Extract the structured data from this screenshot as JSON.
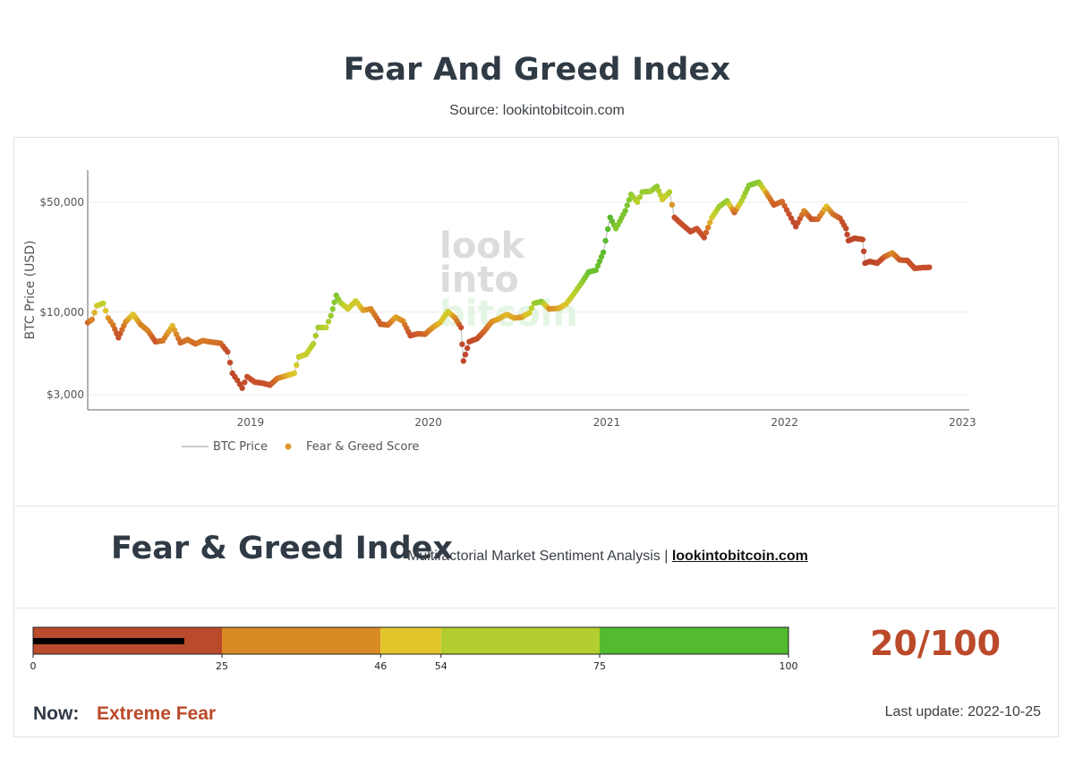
{
  "header": {
    "title": "Fear And Greed Index",
    "source": "Source: lookintobitcoin.com"
  },
  "chart_data": {
    "type": "scatter",
    "ylabel": "BTC Price (USD)",
    "yscale": "log",
    "ylim": [
      2400,
      80000
    ],
    "y_ticks": [
      {
        "value": 3000,
        "label": "$3,000"
      },
      {
        "value": 10000,
        "label": "$10,000"
      },
      {
        "value": 50000,
        "label": "$50,000"
      }
    ],
    "x_ticks": [
      "2019",
      "2020",
      "2021",
      "2022",
      "2023"
    ],
    "x_range": [
      "2018-02-01",
      "2023-01-15"
    ],
    "grid": true,
    "legend_position": "bottom-left",
    "watermark": "lookintobitcoin",
    "series": [
      {
        "name": "BTC Price",
        "kind": "line",
        "color": "#bbbbbb"
      },
      {
        "name": "Fear & Greed Score",
        "kind": "markers",
        "color": "#e0962a"
      }
    ],
    "points": [
      {
        "x": "2018-02-01",
        "y": 8600,
        "s": 30
      },
      {
        "x": "2018-02-10",
        "y": 9000,
        "s": 38
      },
      {
        "x": "2018-02-20",
        "y": 11000,
        "s": 55
      },
      {
        "x": "2018-03-05",
        "y": 11400,
        "s": 60
      },
      {
        "x": "2018-03-15",
        "y": 9200,
        "s": 42
      },
      {
        "x": "2018-03-25",
        "y": 8300,
        "s": 35
      },
      {
        "x": "2018-04-05",
        "y": 6900,
        "s": 22
      },
      {
        "x": "2018-04-20",
        "y": 8700,
        "s": 40
      },
      {
        "x": "2018-05-05",
        "y": 9700,
        "s": 52
      },
      {
        "x": "2018-05-20",
        "y": 8400,
        "s": 40
      },
      {
        "x": "2018-06-05",
        "y": 7600,
        "s": 38
      },
      {
        "x": "2018-06-20",
        "y": 6500,
        "s": 25
      },
      {
        "x": "2018-07-05",
        "y": 6600,
        "s": 35
      },
      {
        "x": "2018-07-25",
        "y": 8200,
        "s": 48
      },
      {
        "x": "2018-08-10",
        "y": 6400,
        "s": 30
      },
      {
        "x": "2018-08-25",
        "y": 6700,
        "s": 35
      },
      {
        "x": "2018-09-10",
        "y": 6300,
        "s": 32
      },
      {
        "x": "2018-09-25",
        "y": 6600,
        "s": 36
      },
      {
        "x": "2018-10-15",
        "y": 6450,
        "s": 34
      },
      {
        "x": "2018-11-01",
        "y": 6350,
        "s": 32
      },
      {
        "x": "2018-11-15",
        "y": 5600,
        "s": 18
      },
      {
        "x": "2018-11-25",
        "y": 4100,
        "s": 12
      },
      {
        "x": "2018-12-05",
        "y": 3700,
        "s": 14
      },
      {
        "x": "2018-12-15",
        "y": 3300,
        "s": 10
      },
      {
        "x": "2018-12-25",
        "y": 3900,
        "s": 22
      },
      {
        "x": "2019-01-10",
        "y": 3600,
        "s": 26
      },
      {
        "x": "2019-01-25",
        "y": 3550,
        "s": 20
      },
      {
        "x": "2019-02-10",
        "y": 3450,
        "s": 24
      },
      {
        "x": "2019-02-25",
        "y": 3800,
        "s": 35
      },
      {
        "x": "2019-03-15",
        "y": 3950,
        "s": 45
      },
      {
        "x": "2019-04-01",
        "y": 4100,
        "s": 52
      },
      {
        "x": "2019-04-10",
        "y": 5200,
        "s": 60
      },
      {
        "x": "2019-04-25",
        "y": 5400,
        "s": 58
      },
      {
        "x": "2019-05-10",
        "y": 6300,
        "s": 65
      },
      {
        "x": "2019-05-20",
        "y": 8000,
        "s": 70
      },
      {
        "x": "2019-06-05",
        "y": 8000,
        "s": 62
      },
      {
        "x": "2019-06-15",
        "y": 9500,
        "s": 72
      },
      {
        "x": "2019-06-26",
        "y": 12800,
        "s": 80
      },
      {
        "x": "2019-07-05",
        "y": 11500,
        "s": 68
      },
      {
        "x": "2019-07-20",
        "y": 10500,
        "s": 55
      },
      {
        "x": "2019-08-05",
        "y": 11800,
        "s": 58
      },
      {
        "x": "2019-08-20",
        "y": 10300,
        "s": 45
      },
      {
        "x": "2019-09-05",
        "y": 10500,
        "s": 40
      },
      {
        "x": "2019-09-25",
        "y": 8400,
        "s": 28
      },
      {
        "x": "2019-10-10",
        "y": 8300,
        "s": 32
      },
      {
        "x": "2019-10-26",
        "y": 9300,
        "s": 45
      },
      {
        "x": "2019-11-10",
        "y": 8800,
        "s": 40
      },
      {
        "x": "2019-11-25",
        "y": 7100,
        "s": 22
      },
      {
        "x": "2019-12-10",
        "y": 7300,
        "s": 28
      },
      {
        "x": "2019-12-25",
        "y": 7250,
        "s": 30
      },
      {
        "x": "2020-01-10",
        "y": 8000,
        "s": 42
      },
      {
        "x": "2020-01-25",
        "y": 8600,
        "s": 48
      },
      {
        "x": "2020-02-10",
        "y": 10100,
        "s": 58
      },
      {
        "x": "2020-02-25",
        "y": 9200,
        "s": 40
      },
      {
        "x": "2020-03-08",
        "y": 8000,
        "s": 25
      },
      {
        "x": "2020-03-13",
        "y": 4900,
        "s": 10
      },
      {
        "x": "2020-03-25",
        "y": 6500,
        "s": 15
      },
      {
        "x": "2020-04-10",
        "y": 6800,
        "s": 22
      },
      {
        "x": "2020-04-25",
        "y": 7600,
        "s": 30
      },
      {
        "x": "2020-05-10",
        "y": 8700,
        "s": 40
      },
      {
        "x": "2020-05-25",
        "y": 9100,
        "s": 45
      },
      {
        "x": "2020-06-10",
        "y": 9700,
        "s": 48
      },
      {
        "x": "2020-06-25",
        "y": 9200,
        "s": 45
      },
      {
        "x": "2020-07-10",
        "y": 9300,
        "s": 42
      },
      {
        "x": "2020-07-26",
        "y": 9900,
        "s": 55
      },
      {
        "x": "2020-08-05",
        "y": 11400,
        "s": 70
      },
      {
        "x": "2020-08-20",
        "y": 11700,
        "s": 75
      },
      {
        "x": "2020-09-05",
        "y": 10500,
        "s": 40
      },
      {
        "x": "2020-09-25",
        "y": 10600,
        "s": 45
      },
      {
        "x": "2020-10-10",
        "y": 11300,
        "s": 52
      },
      {
        "x": "2020-10-25",
        "y": 13000,
        "s": 62
      },
      {
        "x": "2020-11-10",
        "y": 15300,
        "s": 72
      },
      {
        "x": "2020-11-25",
        "y": 18000,
        "s": 84
      },
      {
        "x": "2020-12-10",
        "y": 18500,
        "s": 85
      },
      {
        "x": "2020-12-25",
        "y": 24000,
        "s": 90
      },
      {
        "x": "2021-01-08",
        "y": 40000,
        "s": 93
      },
      {
        "x": "2021-01-20",
        "y": 34000,
        "s": 77
      },
      {
        "x": "2021-02-08",
        "y": 44000,
        "s": 82
      },
      {
        "x": "2021-02-20",
        "y": 56000,
        "s": 74
      },
      {
        "x": "2021-03-05",
        "y": 50000,
        "s": 62
      },
      {
        "x": "2021-03-15",
        "y": 58000,
        "s": 72
      },
      {
        "x": "2021-04-01",
        "y": 58700,
        "s": 70
      },
      {
        "x": "2021-04-14",
        "y": 63000,
        "s": 74
      },
      {
        "x": "2021-04-25",
        "y": 52000,
        "s": 55
      },
      {
        "x": "2021-05-10",
        "y": 58000,
        "s": 65
      },
      {
        "x": "2021-05-20",
        "y": 40000,
        "s": 20
      },
      {
        "x": "2021-06-05",
        "y": 36000,
        "s": 22
      },
      {
        "x": "2021-06-22",
        "y": 32500,
        "s": 15
      },
      {
        "x": "2021-07-05",
        "y": 34000,
        "s": 25
      },
      {
        "x": "2021-07-20",
        "y": 29800,
        "s": 20
      },
      {
        "x": "2021-08-05",
        "y": 40000,
        "s": 55
      },
      {
        "x": "2021-08-20",
        "y": 47000,
        "s": 70
      },
      {
        "x": "2021-09-05",
        "y": 51000,
        "s": 72
      },
      {
        "x": "2021-09-20",
        "y": 43000,
        "s": 30
      },
      {
        "x": "2021-10-05",
        "y": 51000,
        "s": 65
      },
      {
        "x": "2021-10-20",
        "y": 64000,
        "s": 78
      },
      {
        "x": "2021-11-09",
        "y": 67000,
        "s": 75
      },
      {
        "x": "2021-11-25",
        "y": 57000,
        "s": 42
      },
      {
        "x": "2021-12-10",
        "y": 48000,
        "s": 28
      },
      {
        "x": "2021-12-27",
        "y": 50500,
        "s": 32
      },
      {
        "x": "2022-01-10",
        "y": 42000,
        "s": 22
      },
      {
        "x": "2022-01-24",
        "y": 35000,
        "s": 12
      },
      {
        "x": "2022-02-10",
        "y": 44000,
        "s": 40
      },
      {
        "x": "2022-02-25",
        "y": 39000,
        "s": 25
      },
      {
        "x": "2022-03-10",
        "y": 39000,
        "s": 30
      },
      {
        "x": "2022-03-28",
        "y": 47000,
        "s": 50
      },
      {
        "x": "2022-04-10",
        "y": 42000,
        "s": 35
      },
      {
        "x": "2022-04-25",
        "y": 39500,
        "s": 28
      },
      {
        "x": "2022-05-07",
        "y": 34000,
        "s": 15
      },
      {
        "x": "2022-05-12",
        "y": 28500,
        "s": 10
      },
      {
        "x": "2022-05-25",
        "y": 29500,
        "s": 12
      },
      {
        "x": "2022-06-10",
        "y": 29000,
        "s": 15
      },
      {
        "x": "2022-06-15",
        "y": 20500,
        "s": 8
      },
      {
        "x": "2022-06-25",
        "y": 21000,
        "s": 10
      },
      {
        "x": "2022-07-10",
        "y": 20500,
        "s": 12
      },
      {
        "x": "2022-07-25",
        "y": 22500,
        "s": 28
      },
      {
        "x": "2022-08-10",
        "y": 23800,
        "s": 40
      },
      {
        "x": "2022-08-25",
        "y": 21500,
        "s": 28
      },
      {
        "x": "2022-09-10",
        "y": 21300,
        "s": 25
      },
      {
        "x": "2022-09-25",
        "y": 19000,
        "s": 22
      },
      {
        "x": "2022-10-10",
        "y": 19200,
        "s": 24
      },
      {
        "x": "2022-10-25",
        "y": 19300,
        "s": 20
      }
    ]
  },
  "fg_panel": {
    "title": "Fear & Greed Index",
    "subtitle": "Multifactorial Market Sentiment Analysis |",
    "link": "lookintobitcoin.com"
  },
  "gauge": {
    "value": 20,
    "max": 100,
    "score_text": "20/100",
    "segments": [
      {
        "from": 0,
        "to": 25,
        "color": "#b94a2c"
      },
      {
        "from": 25,
        "to": 46,
        "color": "#da8a25"
      },
      {
        "from": 46,
        "to": 54,
        "color": "#e2c52a"
      },
      {
        "from": 54,
        "to": 75,
        "color": "#b3ce2e"
      },
      {
        "from": 75,
        "to": 100,
        "color": "#52bb2f"
      }
    ],
    "ticks": [
      0,
      25,
      46,
      54,
      75,
      100
    ]
  },
  "status": {
    "now_label": "Now:",
    "now_value": "Extreme Fear",
    "now_color": "#bb4a2a",
    "last_update": "Last update: 2022-10-25"
  }
}
